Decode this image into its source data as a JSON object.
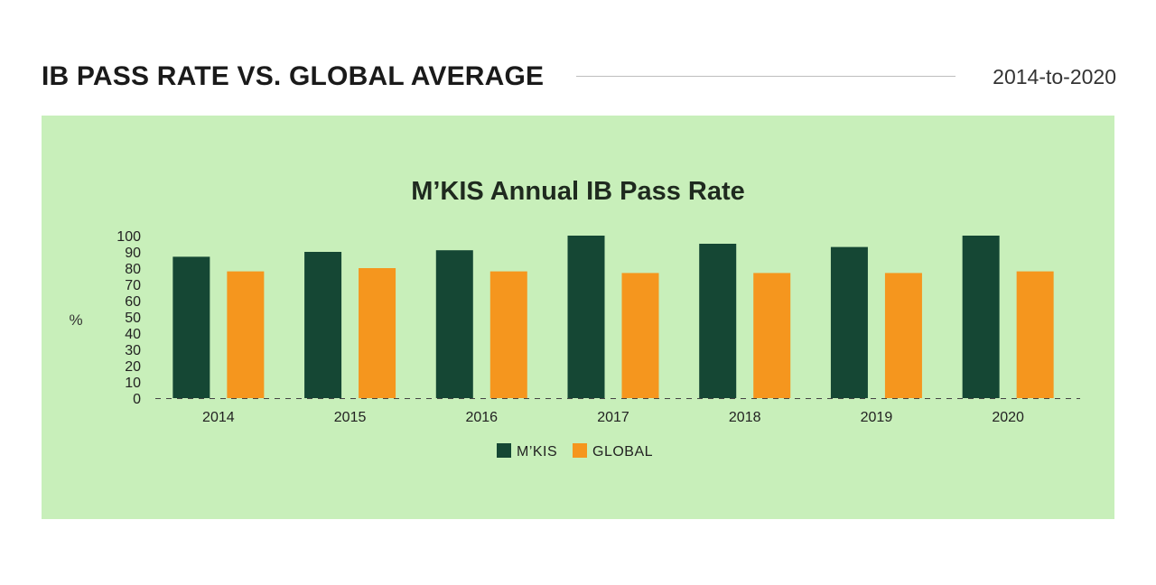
{
  "header": {
    "title": "IB PASS RATE VS. GLOBAL AVERAGE",
    "range": "2014-to-2020"
  },
  "colors": {
    "panel_bg": "#c8efba",
    "mkis": "#154734",
    "global": "#f5961e"
  },
  "chart_data": {
    "type": "bar",
    "title": "M’KIS Annual IB Pass Rate",
    "ylabel": "%",
    "xlabel": "",
    "ylim": [
      0,
      100
    ],
    "yticks": [
      0,
      10,
      20,
      30,
      40,
      50,
      60,
      70,
      80,
      90,
      100
    ],
    "categories": [
      "2014",
      "2015",
      "2016",
      "2017",
      "2018",
      "2019",
      "2020"
    ],
    "series": [
      {
        "name": "M’KIS",
        "color": "#154734",
        "values": [
          87,
          90,
          91,
          100,
          95,
          93,
          100
        ]
      },
      {
        "name": "GLOBAL",
        "color": "#f5961e",
        "values": [
          78,
          80,
          78,
          77,
          77,
          77,
          78
        ]
      }
    ],
    "legend": "bottom-center",
    "baseline": "dashed",
    "grid": false
  }
}
